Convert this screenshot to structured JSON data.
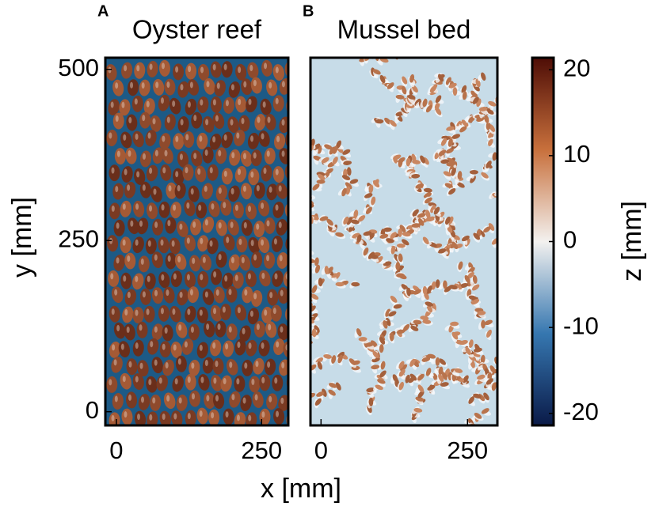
{
  "chart_data": [
    {
      "type": "heatmap",
      "panel": "A",
      "title": "Oyster reef",
      "xlim": [
        -19,
        296
      ],
      "xticks": [
        0,
        250
      ],
      "ylim": [
        -20,
        517
      ],
      "yticks": [
        0,
        250,
        500
      ]
    },
    {
      "type": "heatmap",
      "panel": "B",
      "title": "Mussel bed",
      "xlim": [
        -18,
        301
      ],
      "xticks": [
        0,
        250
      ],
      "ylim": [
        -20,
        517
      ]
    },
    {
      "type": "colorbar",
      "label": "z [mm]",
      "ylim": [
        -21.4,
        21.4
      ],
      "yticks": [
        -20,
        -10,
        0,
        10,
        20
      ]
    }
  ],
  "axes": {
    "xlabel": "x [mm]",
    "ylabel": "y [mm]"
  }
}
